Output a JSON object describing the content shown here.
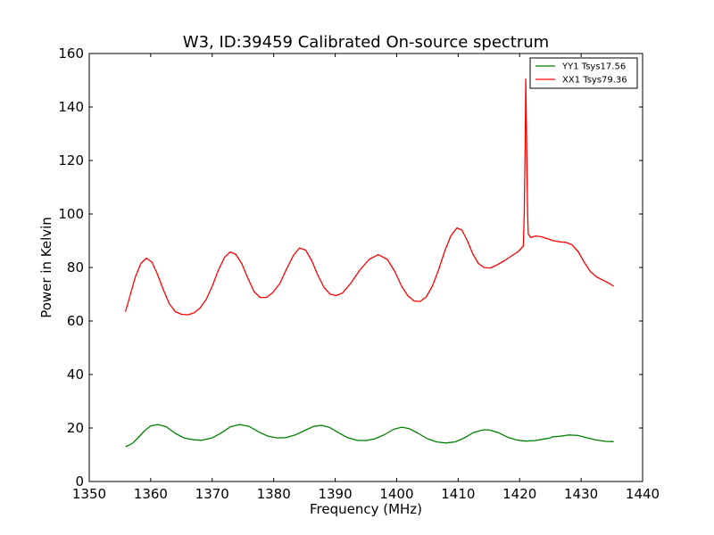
{
  "chart_data": {
    "type": "line",
    "title": "W3, ID:39459 Calibrated On-source spectrum",
    "xlabel": "Frequency (MHz)",
    "ylabel": "Power in Kelvin",
    "xlim": [
      1350,
      1440
    ],
    "ylim": [
      0,
      160
    ],
    "xticks": [
      1350,
      1360,
      1370,
      1380,
      1390,
      1400,
      1410,
      1420,
      1430,
      1440
    ],
    "yticks": [
      0,
      20,
      40,
      60,
      80,
      100,
      120,
      140,
      160
    ],
    "grid": false,
    "legend_position": "top-right",
    "series": [
      {
        "name": "YY1 Tsys17.56",
        "color": "#008000",
        "points": [
          [
            1355.9,
            13.0
          ],
          [
            1357.0,
            14.2
          ],
          [
            1358.0,
            16.5
          ],
          [
            1359.0,
            19.0
          ],
          [
            1360.0,
            20.8
          ],
          [
            1361.2,
            21.3
          ],
          [
            1362.5,
            20.5
          ],
          [
            1364.0,
            18.0
          ],
          [
            1365.5,
            16.2
          ],
          [
            1367.0,
            15.6
          ],
          [
            1368.3,
            15.4
          ],
          [
            1370.0,
            16.3
          ],
          [
            1371.5,
            18.2
          ],
          [
            1373.0,
            20.5
          ],
          [
            1374.5,
            21.3
          ],
          [
            1376.0,
            20.6
          ],
          [
            1377.5,
            18.6
          ],
          [
            1379.0,
            17.0
          ],
          [
            1380.5,
            16.3
          ],
          [
            1382.0,
            16.4
          ],
          [
            1383.5,
            17.4
          ],
          [
            1385.0,
            19.0
          ],
          [
            1386.5,
            20.6
          ],
          [
            1387.8,
            21.0
          ],
          [
            1389.0,
            20.3
          ],
          [
            1390.5,
            18.3
          ],
          [
            1392.0,
            16.4
          ],
          [
            1393.5,
            15.4
          ],
          [
            1395.0,
            15.3
          ],
          [
            1396.5,
            16.0
          ],
          [
            1398.0,
            17.5
          ],
          [
            1399.5,
            19.5
          ],
          [
            1400.8,
            20.3
          ],
          [
            1402.0,
            19.8
          ],
          [
            1403.5,
            18.0
          ],
          [
            1405.0,
            16.0
          ],
          [
            1406.5,
            14.8
          ],
          [
            1408.0,
            14.4
          ],
          [
            1409.5,
            14.8
          ],
          [
            1411.0,
            16.3
          ],
          [
            1412.5,
            18.3
          ],
          [
            1414.0,
            19.3
          ],
          [
            1415.0,
            19.3
          ],
          [
            1416.5,
            18.3
          ],
          [
            1418.0,
            16.6
          ],
          [
            1419.5,
            15.5
          ],
          [
            1421.0,
            15.1
          ],
          [
            1422.5,
            15.3
          ],
          [
            1424.0,
            15.9
          ],
          [
            1425.0,
            16.3
          ],
          [
            1425.3,
            16.7
          ],
          [
            1426.5,
            16.9
          ],
          [
            1428.0,
            17.4
          ],
          [
            1429.5,
            17.2
          ],
          [
            1431.0,
            16.3
          ],
          [
            1432.5,
            15.5
          ],
          [
            1434.0,
            15.0
          ],
          [
            1435.3,
            14.9
          ]
        ]
      },
      {
        "name": "XX1 Tsys79.36",
        "color": "#ff0000",
        "points": [
          [
            1355.9,
            63.5
          ],
          [
            1356.7,
            70.0
          ],
          [
            1357.5,
            76.5
          ],
          [
            1358.4,
            81.5
          ],
          [
            1359.3,
            83.5
          ],
          [
            1360.2,
            82.0
          ],
          [
            1361.0,
            78.0
          ],
          [
            1362.0,
            72.0
          ],
          [
            1363.0,
            66.5
          ],
          [
            1364.0,
            63.5
          ],
          [
            1365.0,
            62.5
          ],
          [
            1366.0,
            62.3
          ],
          [
            1367.0,
            63.0
          ],
          [
            1368.0,
            64.8
          ],
          [
            1369.0,
            68.0
          ],
          [
            1370.0,
            73.0
          ],
          [
            1371.0,
            79.0
          ],
          [
            1372.0,
            83.8
          ],
          [
            1372.9,
            85.8
          ],
          [
            1373.8,
            85.0
          ],
          [
            1374.8,
            81.5
          ],
          [
            1375.8,
            76.0
          ],
          [
            1376.8,
            71.0
          ],
          [
            1377.8,
            68.8
          ],
          [
            1378.8,
            68.8
          ],
          [
            1379.8,
            70.5
          ],
          [
            1381.0,
            74.0
          ],
          [
            1382.0,
            79.0
          ],
          [
            1383.2,
            84.5
          ],
          [
            1384.2,
            87.3
          ],
          [
            1385.2,
            86.5
          ],
          [
            1386.2,
            82.5
          ],
          [
            1387.2,
            77.0
          ],
          [
            1388.2,
            72.5
          ],
          [
            1389.2,
            70.0
          ],
          [
            1390.2,
            69.5
          ],
          [
            1391.2,
            70.5
          ],
          [
            1392.5,
            74.0
          ],
          [
            1394.0,
            79.0
          ],
          [
            1395.5,
            83.0
          ],
          [
            1397.0,
            84.8
          ],
          [
            1398.5,
            83.0
          ],
          [
            1399.7,
            78.5
          ],
          [
            1400.8,
            73.0
          ],
          [
            1401.8,
            69.5
          ],
          [
            1402.8,
            67.5
          ],
          [
            1403.8,
            67.3
          ],
          [
            1404.8,
            69.0
          ],
          [
            1405.8,
            73.0
          ],
          [
            1406.8,
            79.0
          ],
          [
            1407.8,
            86.0
          ],
          [
            1408.8,
            91.8
          ],
          [
            1409.8,
            94.8
          ],
          [
            1410.6,
            94.0
          ],
          [
            1411.5,
            90.0
          ],
          [
            1412.4,
            85.0
          ],
          [
            1413.3,
            81.5
          ],
          [
            1414.2,
            80.0
          ],
          [
            1415.2,
            79.8
          ],
          [
            1416.2,
            80.8
          ],
          [
            1417.5,
            82.5
          ],
          [
            1418.8,
            84.5
          ],
          [
            1419.8,
            86.0
          ],
          [
            1420.6,
            88.0
          ],
          [
            1420.75,
            100.0
          ],
          [
            1420.9,
            125.0
          ],
          [
            1421.0,
            150.5
          ],
          [
            1421.15,
            125.0
          ],
          [
            1421.3,
            100.0
          ],
          [
            1421.4,
            92.5
          ],
          [
            1421.8,
            91.2
          ],
          [
            1422.6,
            91.8
          ],
          [
            1423.5,
            91.5
          ],
          [
            1424.5,
            90.8
          ],
          [
            1425.5,
            90.0
          ],
          [
            1426.5,
            89.6
          ],
          [
            1427.5,
            89.4
          ],
          [
            1428.5,
            88.5
          ],
          [
            1429.5,
            86.0
          ],
          [
            1430.5,
            82.0
          ],
          [
            1431.5,
            78.5
          ],
          [
            1432.5,
            76.5
          ],
          [
            1433.5,
            75.3
          ],
          [
            1434.5,
            74.2
          ],
          [
            1435.3,
            73.0
          ]
        ]
      }
    ]
  }
}
